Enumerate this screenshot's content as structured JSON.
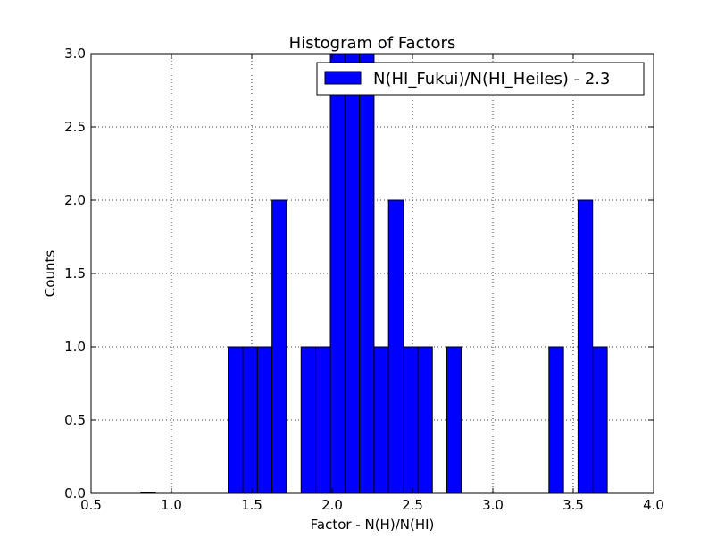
{
  "chart_data": {
    "type": "bar",
    "title": "Histogram of Factors",
    "xlabel": "Factor - N(H)/N(HI)",
    "ylabel": "Counts",
    "xlim": [
      0.5,
      4.0
    ],
    "ylim": [
      0.0,
      3.0
    ],
    "xticks": [
      "0.5",
      "1.0",
      "1.5",
      "2.0",
      "2.5",
      "3.0",
      "3.5",
      "4.0"
    ],
    "yticks": [
      "0.0",
      "0.5",
      "1.0",
      "1.5",
      "2.0",
      "2.5",
      "3.0"
    ],
    "grid": true,
    "legend_position": "top-right",
    "bar_color": "#0000ff",
    "bin_width": 0.0907,
    "series": [
      {
        "name": "N(HI_Fukui)/N(HI_Heiles) - 2.3",
        "bins": [
          {
            "x0": 0.81,
            "count": 0
          },
          {
            "x0": 1.353,
            "count": 1
          },
          {
            "x0": 1.444,
            "count": 1
          },
          {
            "x0": 1.535,
            "count": 1
          },
          {
            "x0": 1.626,
            "count": 2
          },
          {
            "x0": 1.807,
            "count": 1
          },
          {
            "x0": 1.898,
            "count": 1
          },
          {
            "x0": 1.989,
            "count": 3
          },
          {
            "x0": 2.079,
            "count": 3
          },
          {
            "x0": 2.17,
            "count": 3
          },
          {
            "x0": 2.261,
            "count": 1
          },
          {
            "x0": 2.351,
            "count": 2
          },
          {
            "x0": 2.442,
            "count": 1
          },
          {
            "x0": 2.533,
            "count": 1
          },
          {
            "x0": 2.714,
            "count": 1
          },
          {
            "x0": 3.349,
            "count": 1
          },
          {
            "x0": 3.53,
            "count": 2
          },
          {
            "x0": 3.621,
            "count": 1
          }
        ]
      }
    ]
  }
}
